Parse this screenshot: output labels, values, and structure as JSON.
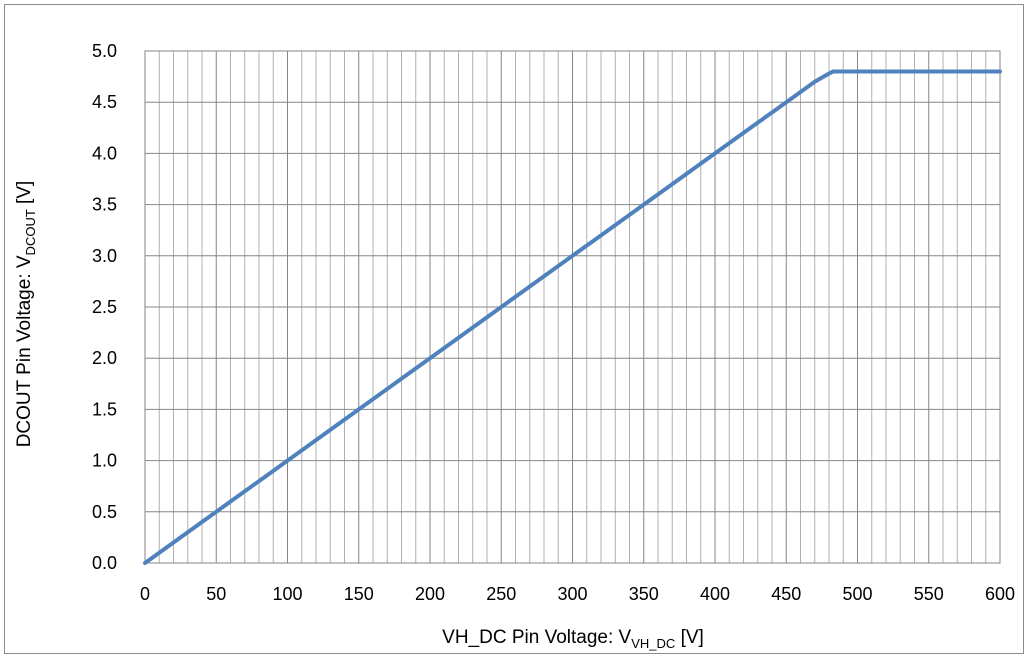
{
  "chart_data": {
    "type": "line",
    "xlabel": {
      "main": "VH_DC Pin Voltage: V",
      "sub": "VH_DC",
      "unit": "  [V]"
    },
    "ylabel": {
      "main": "DCOUT Pin Voltage: V",
      "sub": "DCOUT",
      "unit": " [V]"
    },
    "xlim": [
      0,
      600
    ],
    "ylim": [
      0,
      5.0
    ],
    "x_ticks": [
      "0",
      "50",
      "100",
      "150",
      "200",
      "250",
      "300",
      "350",
      "400",
      "450",
      "500",
      "550",
      "600"
    ],
    "y_ticks": [
      "0.0",
      "0.5",
      "1.0",
      "1.5",
      "2.0",
      "2.5",
      "3.0",
      "3.5",
      "4.0",
      "4.5",
      "5.0"
    ],
    "grid": true,
    "minor_x_step": 10,
    "major_y_step": 0.5,
    "series_color": "#4f81bd",
    "series": [
      {
        "x": [
          0,
          20,
          40,
          50,
          60,
          80,
          100,
          120,
          140,
          160,
          180,
          200,
          220,
          240,
          260,
          280,
          300,
          320,
          340,
          360,
          380,
          400,
          405,
          410,
          415,
          420,
          425,
          430,
          435,
          440,
          445,
          450,
          455,
          460,
          465,
          470,
          475,
          480,
          483,
          500,
          550,
          600
        ],
        "y": [
          0.0,
          0.2,
          0.4,
          0.5,
          0.6,
          0.8,
          1.0,
          1.2,
          1.4,
          1.6,
          1.8,
          2.0,
          2.2,
          2.4,
          2.6,
          2.8,
          3.0,
          3.2,
          3.4,
          3.6,
          3.8,
          4.0,
          4.05,
          4.1,
          4.15,
          4.2,
          4.25,
          4.3,
          4.35,
          4.4,
          4.45,
          4.5,
          4.55,
          4.6,
          4.65,
          4.7,
          4.74,
          4.78,
          4.8,
          4.8,
          4.8,
          4.8
        ]
      }
    ]
  }
}
